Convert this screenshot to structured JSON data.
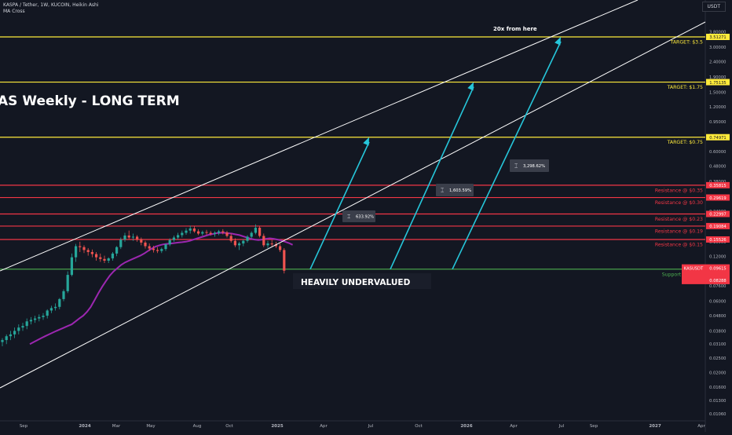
{
  "header": {
    "symbol_line": "KASPA / Tether, 1W, KUCOIN, Heikin Ashi",
    "indicator": "MA Cross",
    "currency": "USDT"
  },
  "chart_data": {
    "type": "candlestick",
    "title": "AS Weekly - LONG TERM",
    "y_scale": "log",
    "ylim": [
      0.0105,
      5.2
    ],
    "x_tick_labels": [
      "Sep",
      "2024",
      "Mar",
      "May",
      "Aug",
      "Oct",
      "2025",
      "Apr",
      "Jul",
      "Oct",
      "2026",
      "Apr",
      "Jul",
      "Sep",
      "2027",
      "Apr"
    ],
    "y_ticks": [
      "3.80000",
      "3.00000",
      "2.40000",
      "1.90000",
      "1.50000",
      "1.20000",
      "0.95000",
      "0.76000",
      "0.60000",
      "0.48000",
      "0.38000",
      "0.30000",
      "0.24000",
      "0.19000",
      "0.15000",
      "0.12000",
      "0.09500",
      "0.07600",
      "0.06000",
      "0.04800",
      "0.03800",
      "0.03100",
      "0.02500",
      "0.02000",
      "0.01600",
      "0.01300",
      "0.01060"
    ],
    "price_levels": [
      {
        "value": 3.5127,
        "label": "TARGET: $3.5",
        "tag": "3.51271",
        "color": "#ffeb3b"
      },
      {
        "value": 1.75135,
        "label": "TARGET: $1.75",
        "tag": "1.75135",
        "color": "#ffeb3b"
      },
      {
        "value": 0.74971,
        "label": "TARGET: $0.75",
        "tag": "0.74971",
        "color": "#ffeb3b"
      },
      {
        "value": 0.35815,
        "label": "Resistance @ $0.35",
        "tag": "0.35815",
        "color": "#f23645"
      },
      {
        "value": 0.29619,
        "label": "Resistance @ $0.30",
        "tag": "0.29619",
        "color": "#f23645"
      },
      {
        "value": 0.22997,
        "label": "Resistance @ $0.23",
        "tag": "0.22997",
        "color": "#f23645"
      },
      {
        "value": 0.19084,
        "label": "Resistance @ $0.19",
        "tag": "0.19084",
        "color": "#f23645"
      },
      {
        "value": 0.15526,
        "label": "Resistance @ $0.15",
        "tag": "0.15526",
        "color": "#f23645"
      },
      {
        "value": 0.09828,
        "label": "Support @ $0.10",
        "tag": "0.09828",
        "color": "#4caf50"
      }
    ],
    "price_tags": [
      {
        "value": 0.09615,
        "lines": [
          "KASUSDT",
          "0.09615",
          "3d 6h"
        ],
        "color": "#f23645"
      },
      {
        "value": 0.08288,
        "lines": [
          "0.08288"
        ],
        "color": "#f23645"
      }
    ],
    "annotations": {
      "top_note": "20x from here",
      "undervalued": "HEAVILY UNDERVALUED",
      "measures": [
        "633.92%",
        "1,603.59%",
        "3,298.62%"
      ]
    },
    "candles_ohlc": [
      [
        0.032,
        0.034,
        0.03,
        0.033
      ],
      [
        0.033,
        0.036,
        0.031,
        0.035
      ],
      [
        0.035,
        0.038,
        0.033,
        0.036
      ],
      [
        0.036,
        0.04,
        0.034,
        0.038
      ],
      [
        0.038,
        0.042,
        0.036,
        0.04
      ],
      [
        0.04,
        0.043,
        0.038,
        0.041
      ],
      [
        0.041,
        0.046,
        0.039,
        0.044
      ],
      [
        0.044,
        0.047,
        0.042,
        0.045
      ],
      [
        0.045,
        0.048,
        0.043,
        0.046
      ],
      [
        0.046,
        0.049,
        0.044,
        0.047
      ],
      [
        0.047,
        0.05,
        0.045,
        0.048
      ],
      [
        0.048,
        0.053,
        0.046,
        0.052
      ],
      [
        0.052,
        0.056,
        0.05,
        0.054
      ],
      [
        0.054,
        0.058,
        0.052,
        0.055
      ],
      [
        0.055,
        0.063,
        0.053,
        0.062
      ],
      [
        0.062,
        0.072,
        0.06,
        0.07
      ],
      [
        0.07,
        0.095,
        0.068,
        0.09
      ],
      [
        0.09,
        0.125,
        0.088,
        0.118
      ],
      [
        0.118,
        0.145,
        0.11,
        0.14
      ],
      [
        0.14,
        0.15,
        0.128,
        0.138
      ],
      [
        0.138,
        0.142,
        0.126,
        0.132
      ],
      [
        0.132,
        0.136,
        0.121,
        0.128
      ],
      [
        0.128,
        0.133,
        0.118,
        0.124
      ],
      [
        0.124,
        0.128,
        0.112,
        0.118
      ],
      [
        0.118,
        0.125,
        0.11,
        0.115
      ],
      [
        0.115,
        0.121,
        0.108,
        0.112
      ],
      [
        0.112,
        0.118,
        0.108,
        0.116
      ],
      [
        0.116,
        0.128,
        0.112,
        0.125
      ],
      [
        0.125,
        0.14,
        0.12,
        0.138
      ],
      [
        0.138,
        0.16,
        0.134,
        0.155
      ],
      [
        0.155,
        0.172,
        0.15,
        0.165
      ],
      [
        0.165,
        0.178,
        0.155,
        0.16
      ],
      [
        0.16,
        0.17,
        0.152,
        0.162
      ],
      [
        0.162,
        0.166,
        0.15,
        0.156
      ],
      [
        0.156,
        0.16,
        0.142,
        0.148
      ],
      [
        0.148,
        0.152,
        0.135,
        0.14
      ],
      [
        0.14,
        0.146,
        0.13,
        0.135
      ],
      [
        0.135,
        0.141,
        0.127,
        0.132
      ],
      [
        0.132,
        0.138,
        0.126,
        0.13
      ],
      [
        0.13,
        0.137,
        0.126,
        0.134
      ],
      [
        0.134,
        0.146,
        0.13,
        0.144
      ],
      [
        0.144,
        0.158,
        0.14,
        0.154
      ],
      [
        0.154,
        0.165,
        0.15,
        0.16
      ],
      [
        0.16,
        0.172,
        0.155,
        0.166
      ],
      [
        0.166,
        0.178,
        0.16,
        0.172
      ],
      [
        0.172,
        0.185,
        0.167,
        0.178
      ],
      [
        0.178,
        0.192,
        0.17,
        0.184
      ],
      [
        0.184,
        0.19,
        0.172,
        0.176
      ],
      [
        0.176,
        0.182,
        0.166,
        0.17
      ],
      [
        0.17,
        0.178,
        0.165,
        0.174
      ],
      [
        0.174,
        0.18,
        0.167,
        0.172
      ],
      [
        0.172,
        0.177,
        0.165,
        0.169
      ],
      [
        0.169,
        0.176,
        0.162,
        0.172
      ],
      [
        0.172,
        0.18,
        0.166,
        0.176
      ],
      [
        0.176,
        0.182,
        0.168,
        0.173
      ],
      [
        0.173,
        0.177,
        0.16,
        0.164
      ],
      [
        0.164,
        0.17,
        0.148,
        0.152
      ],
      [
        0.152,
        0.158,
        0.138,
        0.142
      ],
      [
        0.142,
        0.15,
        0.132,
        0.146
      ],
      [
        0.146,
        0.156,
        0.14,
        0.152
      ],
      [
        0.152,
        0.166,
        0.148,
        0.162
      ],
      [
        0.162,
        0.176,
        0.158,
        0.172
      ],
      [
        0.172,
        0.196,
        0.168,
        0.186
      ],
      [
        0.186,
        0.19,
        0.16,
        0.164
      ],
      [
        0.164,
        0.17,
        0.138,
        0.142
      ],
      [
        0.142,
        0.152,
        0.136,
        0.146
      ],
      [
        0.146,
        0.154,
        0.138,
        0.144
      ],
      [
        0.144,
        0.15,
        0.136,
        0.14
      ],
      [
        0.14,
        0.146,
        0.128,
        0.132
      ],
      [
        0.132,
        0.136,
        0.092,
        0.096
      ]
    ],
    "ma_values": [
      0.031,
      0.032,
      0.033,
      0.034,
      0.035,
      0.036,
      0.037,
      0.038,
      0.039,
      0.04,
      0.041,
      0.042,
      0.044,
      0.046,
      0.048,
      0.051,
      0.055,
      0.061,
      0.068,
      0.075,
      0.082,
      0.089,
      0.095,
      0.1,
      0.105,
      0.109,
      0.112,
      0.115,
      0.118,
      0.121,
      0.125,
      0.13,
      0.135,
      0.139,
      0.142,
      0.144,
      0.145,
      0.146,
      0.147,
      0.148,
      0.149,
      0.15,
      0.152,
      0.155,
      0.158,
      0.161,
      0.164,
      0.167,
      0.169,
      0.171,
      0.172,
      0.172,
      0.171,
      0.17,
      0.168,
      0.166,
      0.163,
      0.16,
      0.157,
      0.155,
      0.154,
      0.155,
      0.157,
      0.158,
      0.157,
      0.155,
      0.153,
      0.15,
      0.147,
      0.143
    ]
  }
}
